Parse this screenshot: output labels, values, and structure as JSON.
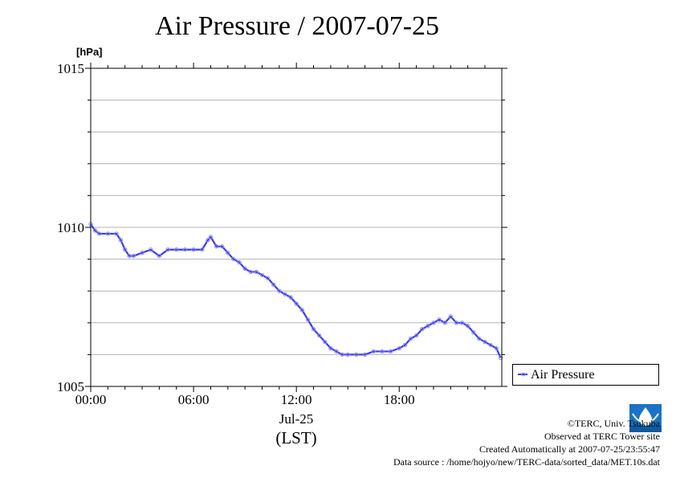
{
  "title": "Air Pressure / 2007-07-25",
  "unit": "[hPa]",
  "xaxis": {
    "date_label": "Jul-25",
    "tz_label": "(LST)"
  },
  "legend": {
    "label": "Air Pressure"
  },
  "credits": {
    "line1": "©TERC, Univ. Tsukuba",
    "line2": "Observed at TERC Tower site",
    "line3": "Created Automatically at 2007-07-25/23:55:47",
    "line4": "Data source : /home/hojyo/new/TERC-data/sorted_data/MET.10s.dat"
  },
  "colors": {
    "series": "#3a3af0",
    "marker": "#8f8ff5",
    "grid": "#b4b4b4",
    "logo": "#1a73c6"
  },
  "chart_data": {
    "type": "line",
    "title": "Air Pressure / 2007-07-25",
    "ylabel": "[hPa]",
    "xlabel": "Jul-25 (LST)",
    "ylim": [
      1005,
      1015
    ],
    "y_ticks": [
      1005,
      1010,
      1015
    ],
    "y_minor_step": 1,
    "xlim": [
      "00:00",
      "23:59"
    ],
    "x_ticks": [
      "00:00",
      "06:00",
      "12:00",
      "18:00"
    ],
    "grid": true,
    "legend_position": "outside-right",
    "series": [
      {
        "name": "Air Pressure",
        "x": [
          "00:00",
          "00:15",
          "00:30",
          "01:00",
          "01:30",
          "01:45",
          "02:00",
          "02:15",
          "02:30",
          "03:00",
          "03:30",
          "04:00",
          "04:30",
          "05:00",
          "05:30",
          "06:00",
          "06:30",
          "06:50",
          "07:00",
          "07:20",
          "07:40",
          "08:00",
          "08:20",
          "08:40",
          "09:00",
          "09:20",
          "09:40",
          "10:00",
          "10:20",
          "10:40",
          "11:00",
          "11:20",
          "11:40",
          "12:00",
          "12:20",
          "12:40",
          "13:00",
          "13:20",
          "13:40",
          "14:00",
          "14:20",
          "14:40",
          "15:00",
          "15:30",
          "16:00",
          "16:30",
          "17:00",
          "17:30",
          "18:00",
          "18:20",
          "18:40",
          "19:00",
          "19:20",
          "19:40",
          "20:00",
          "20:20",
          "20:40",
          "21:00",
          "21:20",
          "21:40",
          "22:00",
          "22:20",
          "22:40",
          "23:00",
          "23:20",
          "23:40",
          "23:55"
        ],
        "values": [
          1010.1,
          1009.9,
          1009.8,
          1009.8,
          1009.8,
          1009.6,
          1009.3,
          1009.1,
          1009.1,
          1009.2,
          1009.3,
          1009.1,
          1009.3,
          1009.3,
          1009.3,
          1009.3,
          1009.3,
          1009.6,
          1009.7,
          1009.4,
          1009.4,
          1009.2,
          1009.0,
          1008.9,
          1008.7,
          1008.6,
          1008.6,
          1008.5,
          1008.4,
          1008.2,
          1008.0,
          1007.9,
          1007.8,
          1007.6,
          1007.4,
          1007.1,
          1006.8,
          1006.6,
          1006.4,
          1006.2,
          1006.1,
          1006.0,
          1006.0,
          1006.0,
          1006.0,
          1006.1,
          1006.1,
          1006.1,
          1006.2,
          1006.3,
          1006.5,
          1006.6,
          1006.8,
          1006.9,
          1007.0,
          1007.1,
          1007.0,
          1007.2,
          1007.0,
          1007.0,
          1006.9,
          1006.7,
          1006.5,
          1006.4,
          1006.3,
          1006.2,
          1005.9
        ]
      }
    ]
  }
}
